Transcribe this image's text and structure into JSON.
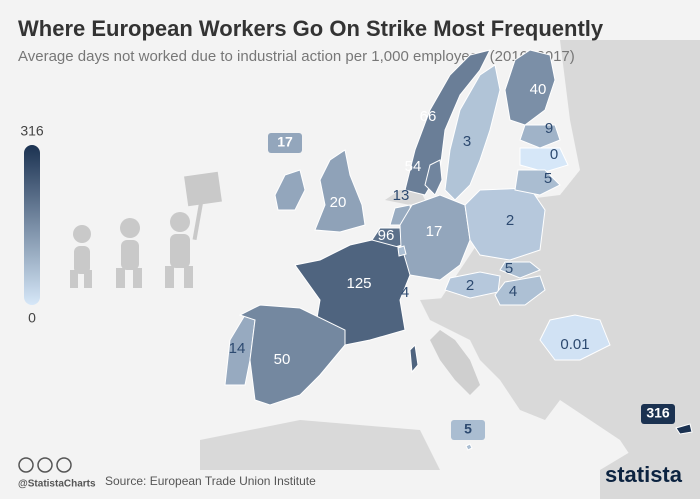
{
  "chart_data": {
    "type": "choropleth",
    "title": "Where European Workers Go On Strike Most Frequently",
    "subtitle": "Average days not worked due to industrial action per 1,000 employees (2010–2017)",
    "values": [
      66,
      40,
      3,
      17,
      20,
      54,
      13,
      96,
      17,
      2,
      9,
      0,
      5,
      125,
      4,
      2,
      5,
      4,
      14,
      50,
      0.01,
      5,
      316
    ],
    "clim": [
      0,
      316
    ],
    "cticks": [
      0,
      316
    ],
    "color_low": "#d6e7f8",
    "color_high": "#1b3251"
  },
  "footer": {
    "handle": "@StatistaCharts",
    "source": "Source: European Trade Union Institute",
    "brand": "statista"
  }
}
